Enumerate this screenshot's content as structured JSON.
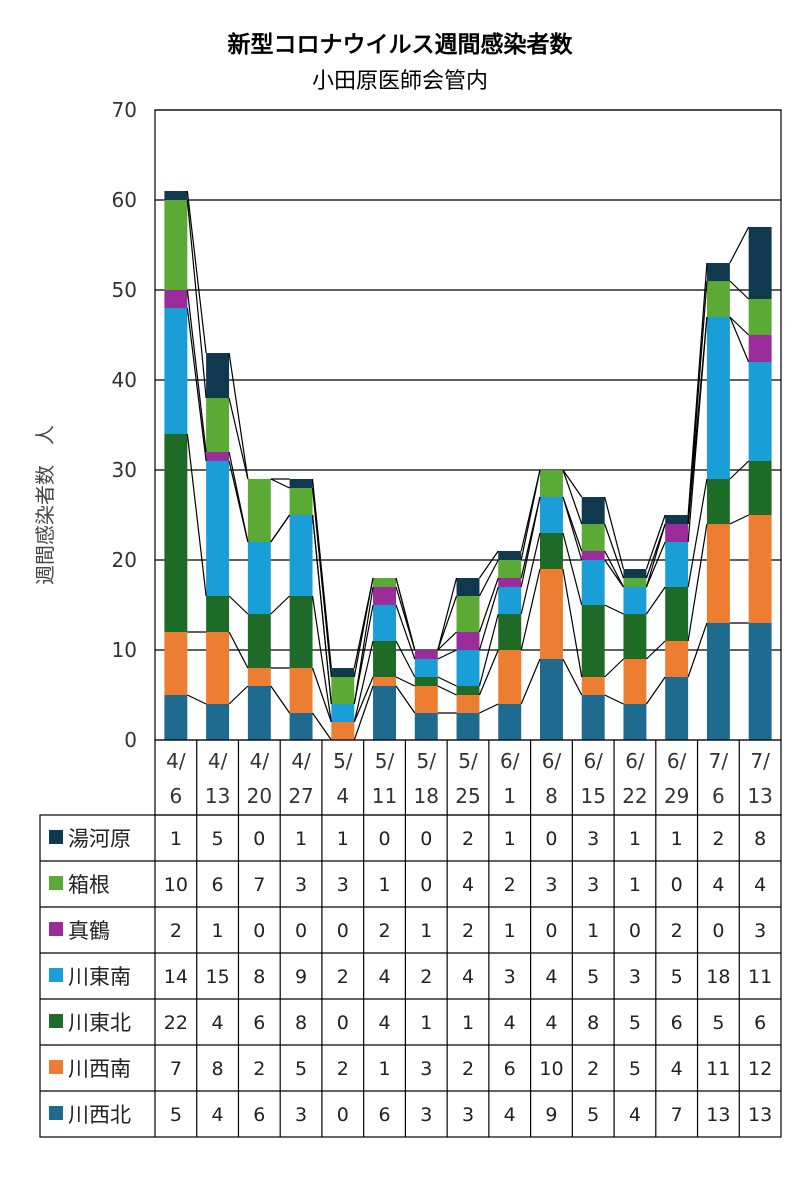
{
  "chart_data": {
    "type": "bar",
    "stacked": true,
    "title": "新型コロナウイルス週間感染者数",
    "subtitle": "小田原医師会管内",
    "ylabel": "週間感染者数　人",
    "ylim": [
      0,
      70
    ],
    "yticks": [
      0,
      10,
      20,
      30,
      40,
      50,
      60,
      70
    ],
    "grid": true,
    "legend": "table-bottom",
    "categories": [
      [
        "4/",
        "6"
      ],
      [
        "4/",
        "13"
      ],
      [
        "4/",
        "20"
      ],
      [
        "4/",
        "27"
      ],
      [
        "5/",
        "4"
      ],
      [
        "5/",
        "11"
      ],
      [
        "5/",
        "18"
      ],
      [
        "5/",
        "25"
      ],
      [
        "6/",
        "1"
      ],
      [
        "6/",
        "8"
      ],
      [
        "6/",
        "15"
      ],
      [
        "6/",
        "22"
      ],
      [
        "6/",
        "29"
      ],
      [
        "7/",
        "6"
      ],
      [
        "7/",
        "13"
      ]
    ],
    "series": [
      {
        "name": "川西北",
        "color": "#1f6a8f",
        "values": [
          5,
          4,
          6,
          3,
          0,
          6,
          3,
          3,
          4,
          9,
          5,
          4,
          7,
          13,
          13
        ]
      },
      {
        "name": "川西南",
        "color": "#ed7d31",
        "values": [
          7,
          8,
          2,
          5,
          2,
          1,
          3,
          2,
          6,
          10,
          2,
          5,
          4,
          11,
          12
        ]
      },
      {
        "name": "川東北",
        "color": "#1e6b27",
        "values": [
          22,
          4,
          6,
          8,
          0,
          4,
          1,
          1,
          4,
          4,
          8,
          5,
          6,
          5,
          6
        ]
      },
      {
        "name": "川東南",
        "color": "#1a9ed8",
        "values": [
          14,
          15,
          8,
          9,
          2,
          4,
          2,
          4,
          3,
          4,
          5,
          3,
          5,
          18,
          11
        ]
      },
      {
        "name": "真鶴",
        "color": "#9b2d9b",
        "values": [
          2,
          1,
          0,
          0,
          0,
          2,
          1,
          2,
          1,
          0,
          1,
          0,
          2,
          0,
          3
        ]
      },
      {
        "name": "箱根",
        "color": "#5aaa35",
        "values": [
          10,
          6,
          7,
          3,
          3,
          1,
          0,
          4,
          2,
          3,
          3,
          1,
          0,
          4,
          4
        ]
      },
      {
        "name": "湯河原",
        "color": "#10384f",
        "values": [
          1,
          5,
          0,
          1,
          1,
          0,
          0,
          2,
          1,
          0,
          3,
          1,
          1,
          2,
          8
        ]
      }
    ]
  }
}
